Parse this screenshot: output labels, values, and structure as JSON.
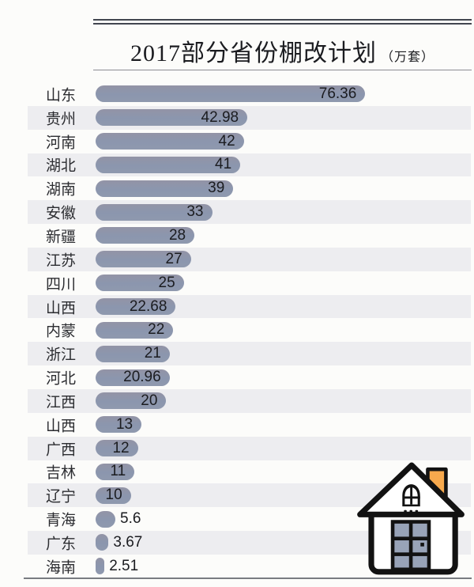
{
  "chart_data": {
    "type": "bar",
    "orientation": "horizontal",
    "title": "2017部分省份棚改计划",
    "unit_label": "（万套）",
    "categories": [
      "山东",
      "贵州",
      "河南",
      "湖北",
      "湖南",
      "安徽",
      "新疆",
      "江苏",
      "四川",
      "山西",
      "内蒙",
      "浙江",
      "河北",
      "江西",
      "山西",
      "广西",
      "吉林",
      "辽宁",
      "青海",
      "广东",
      "海南"
    ],
    "values": [
      76.36,
      42.98,
      42,
      41,
      39,
      33,
      28,
      27,
      25,
      22.68,
      22,
      21,
      20.96,
      20,
      13,
      12,
      11,
      10,
      5.6,
      3.67,
      2.51
    ],
    "xlim": [
      0,
      106.5
    ],
    "grid": false,
    "legend": "none",
    "value_labels_shown": true,
    "bar_color": "#8c96ac",
    "stripe_color": "#ededf0",
    "rule_color": "#42464f",
    "house_icon_accent": "#f7a94d",
    "house_icon_pane_color": "#98a3b8"
  }
}
